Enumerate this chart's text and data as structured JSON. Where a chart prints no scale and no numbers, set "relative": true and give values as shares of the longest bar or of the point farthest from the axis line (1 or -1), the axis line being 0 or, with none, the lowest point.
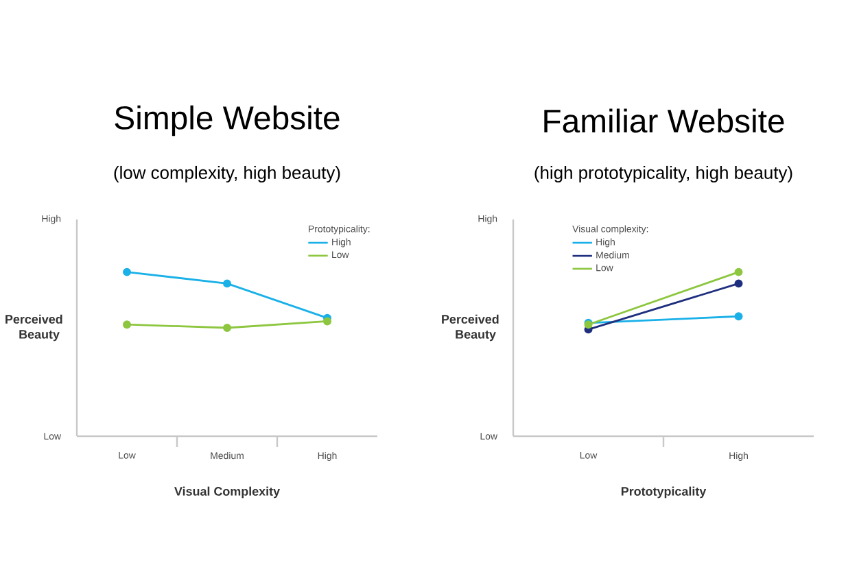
{
  "chart_data": [
    {
      "type": "line",
      "title": "Simple Website",
      "subtitle": "(low complexity, high beauty)",
      "xlabel": "Visual Complexity",
      "ylabel": "Perceived Beauty",
      "legend_title": "Prototypicality:",
      "categories": [
        "Low",
        "Medium",
        "High"
      ],
      "relative": true,
      "annotations": [
        "High",
        "Low"
      ],
      "legend": "top right",
      "marker": "circle",
      "line_style": "solid",
      "series": [
        {
          "name": "High",
          "color": "#1ab0e8",
          "values": [
            1,
            0.93,
            0.72
          ]
        },
        {
          "name": "Low",
          "color": "#8dc63f",
          "values": [
            0.68,
            0.66,
            0.7
          ]
        }
      ]
    },
    {
      "type": "line",
      "title": "Familiar Website",
      "subtitle": "(high prototypicality, high beauty)",
      "xlabel": "Prototypicality",
      "ylabel": "Perceived Beauty",
      "legend_title": "Visual complexity:",
      "categories": [
        "Low",
        "High"
      ],
      "relative": true,
      "annotations": [
        "High",
        "Low"
      ],
      "legend": "top left",
      "marker": "circle",
      "line_style": "solid",
      "series": [
        {
          "name": "High",
          "color": "#1ab0e8",
          "values": [
            0.69,
            0.73
          ]
        },
        {
          "name": "Medium",
          "color": "#1f2f7f",
          "values": [
            0.65,
            0.93
          ]
        },
        {
          "name": "Low",
          "color": "#8dc63f",
          "values": [
            0.68,
            1
          ]
        }
      ]
    }
  ]
}
